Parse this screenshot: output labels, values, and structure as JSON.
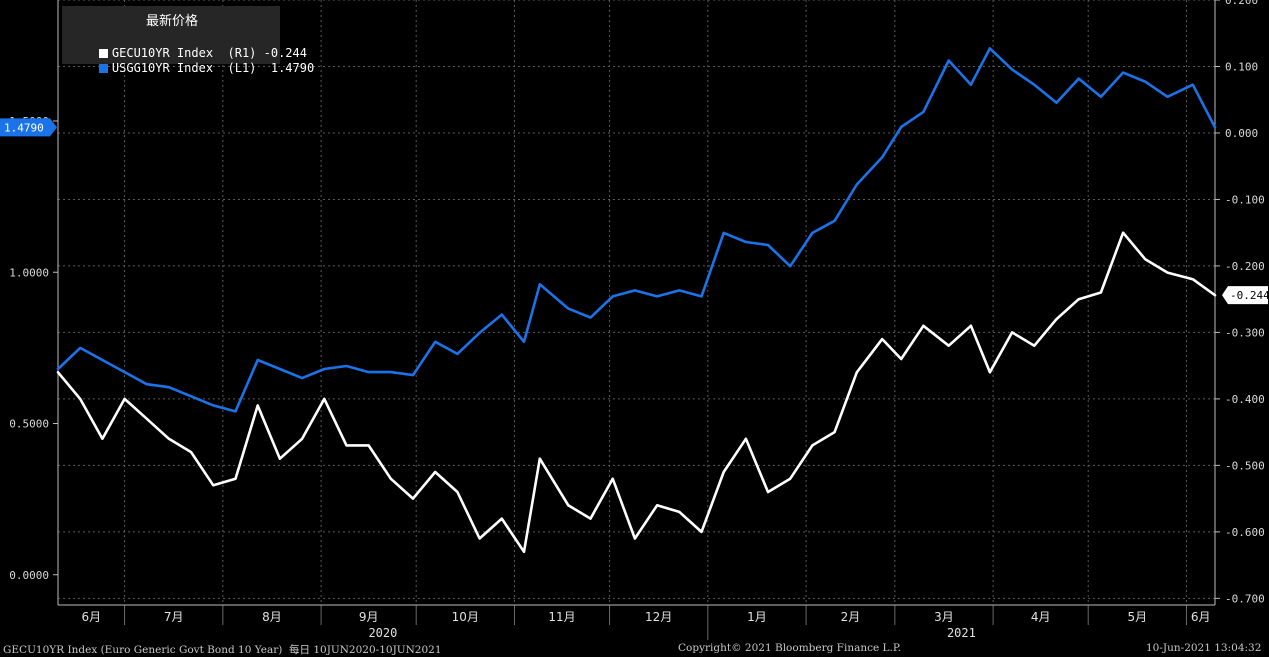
{
  "legend": {
    "title": "最新价格",
    "items": [
      {
        "label": "GECU10YR Index  (R1) -0.244",
        "color": "#ffffff"
      },
      {
        "label": "USGG10YR Index  (L1)  1.4790",
        "color": "#1a73e8"
      }
    ]
  },
  "footer": {
    "left": "GECU10YR Index (Euro Generic Govt Bond 10 Year)  每日 10JUN2020-10JUN2021",
    "center": "Copyright© 2021 Bloomberg Finance L.P.",
    "right": "10-Jun-2021 13:04:32"
  },
  "chart_data": {
    "type": "line",
    "x_range": [
      "2020-06-10",
      "2021-06-10"
    ],
    "months": [
      "6月",
      "7月",
      "8月",
      "9月",
      "10月",
      "11月",
      "12月",
      "1月",
      "2月",
      "3月",
      "4月",
      "5月",
      "6月"
    ],
    "years": [
      "2020",
      "2021"
    ],
    "left_axis": {
      "ticks": [
        "0.0000",
        "0.5000",
        "1.0000",
        "1.5000"
      ],
      "tick_values": [
        0.0,
        0.5,
        1.0,
        1.5
      ],
      "range": [
        -0.1,
        1.9
      ]
    },
    "right_axis": {
      "ticks": [
        "0.200",
        "0.100",
        "0.000",
        "-0.100",
        "-0.200",
        "-0.300",
        "-0.400",
        "-0.500",
        "-0.600",
        "-0.700"
      ],
      "tick_values": [
        0.2,
        0.1,
        0.0,
        -0.1,
        -0.2,
        -0.3,
        -0.4,
        -0.5,
        -0.6,
        -0.7
      ],
      "range": [
        -0.71,
        0.2
      ]
    },
    "series": [
      {
        "name": "USGG10YR Index",
        "axis": "left",
        "color": "#1a73e8",
        "last_label": "1.4790",
        "x": [
          "2020-06-10",
          "2020-06-17",
          "2020-06-24",
          "2020-07-01",
          "2020-07-08",
          "2020-07-15",
          "2020-07-22",
          "2020-07-29",
          "2020-08-05",
          "2020-08-12",
          "2020-08-19",
          "2020-08-26",
          "2020-09-02",
          "2020-09-09",
          "2020-09-16",
          "2020-09-23",
          "2020-09-30",
          "2020-10-07",
          "2020-10-14",
          "2020-10-21",
          "2020-10-28",
          "2020-11-04",
          "2020-11-09",
          "2020-11-18",
          "2020-11-25",
          "2020-12-02",
          "2020-12-09",
          "2020-12-16",
          "2020-12-23",
          "2020-12-30",
          "2021-01-06",
          "2021-01-13",
          "2021-01-20",
          "2021-01-27",
          "2021-02-03",
          "2021-02-10",
          "2021-02-17",
          "2021-02-25",
          "2021-03-03",
          "2021-03-10",
          "2021-03-18",
          "2021-03-25",
          "2021-03-31",
          "2021-04-07",
          "2021-04-14",
          "2021-04-21",
          "2021-04-28",
          "2021-05-05",
          "2021-05-12",
          "2021-05-19",
          "2021-05-26",
          "2021-06-03",
          "2021-06-10"
        ],
        "y": [
          0.68,
          0.75,
          0.71,
          0.67,
          0.63,
          0.62,
          0.59,
          0.56,
          0.54,
          0.71,
          0.68,
          0.65,
          0.68,
          0.69,
          0.67,
          0.67,
          0.66,
          0.77,
          0.73,
          0.8,
          0.86,
          0.77,
          0.96,
          0.88,
          0.85,
          0.92,
          0.94,
          0.92,
          0.94,
          0.92,
          1.13,
          1.1,
          1.09,
          1.02,
          1.13,
          1.17,
          1.29,
          1.38,
          1.48,
          1.53,
          1.7,
          1.62,
          1.74,
          1.67,
          1.62,
          1.56,
          1.64,
          1.58,
          1.66,
          1.63,
          1.58,
          1.62,
          1.479
        ]
      },
      {
        "name": "GECU10YR Index",
        "axis": "right",
        "color": "#ffffff",
        "last_label": "-0.244",
        "x": [
          "2020-06-10",
          "2020-06-17",
          "2020-06-24",
          "2020-07-01",
          "2020-07-08",
          "2020-07-15",
          "2020-07-22",
          "2020-07-29",
          "2020-08-05",
          "2020-08-12",
          "2020-08-19",
          "2020-08-26",
          "2020-09-02",
          "2020-09-09",
          "2020-09-16",
          "2020-09-23",
          "2020-09-30",
          "2020-10-07",
          "2020-10-14",
          "2020-10-21",
          "2020-10-28",
          "2020-11-04",
          "2020-11-09",
          "2020-11-18",
          "2020-11-25",
          "2020-12-02",
          "2020-12-09",
          "2020-12-16",
          "2020-12-23",
          "2020-12-30",
          "2021-01-06",
          "2021-01-13",
          "2021-01-20",
          "2021-01-27",
          "2021-02-03",
          "2021-02-10",
          "2021-02-17",
          "2021-02-25",
          "2021-03-03",
          "2021-03-10",
          "2021-03-18",
          "2021-03-25",
          "2021-03-31",
          "2021-04-07",
          "2021-04-14",
          "2021-04-21",
          "2021-04-28",
          "2021-05-05",
          "2021-05-12",
          "2021-05-19",
          "2021-05-26",
          "2021-06-03",
          "2021-06-10"
        ],
        "y": [
          -0.36,
          -0.4,
          -0.46,
          -0.4,
          -0.43,
          -0.46,
          -0.48,
          -0.53,
          -0.52,
          -0.41,
          -0.49,
          -0.46,
          -0.4,
          -0.47,
          -0.47,
          -0.52,
          -0.55,
          -0.51,
          -0.54,
          -0.61,
          -0.58,
          -0.63,
          -0.49,
          -0.56,
          -0.58,
          -0.52,
          -0.61,
          -0.56,
          -0.57,
          -0.6,
          -0.51,
          -0.46,
          -0.54,
          -0.52,
          -0.47,
          -0.45,
          -0.36,
          -0.31,
          -0.34,
          -0.29,
          -0.32,
          -0.29,
          -0.36,
          -0.3,
          -0.32,
          -0.28,
          -0.25,
          -0.24,
          -0.15,
          -0.19,
          -0.21,
          -0.22,
          -0.244
        ]
      }
    ]
  }
}
